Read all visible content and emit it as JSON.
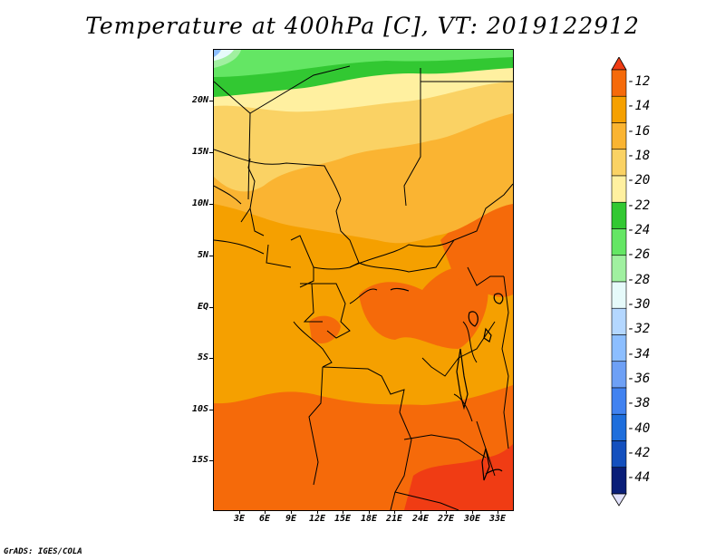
{
  "title": "Temperature at 400hPa [C], VT: 2019122912",
  "credit": "GrADS: IGES/COLA",
  "lat_labels": [
    "20N",
    "15N",
    "10N",
    "5N",
    "EQ",
    "5S",
    "10S",
    "15S"
  ],
  "lon_labels": [
    "3E",
    "6E",
    "9E",
    "12E",
    "15E",
    "18E",
    "21E",
    "24E",
    "27E",
    "30E",
    "33E"
  ],
  "colorbar": {
    "labels": [
      "-12",
      "-14",
      "-16",
      "-18",
      "-20",
      "-22",
      "-24",
      "-26",
      "-28",
      "-30",
      "-32",
      "-34",
      "-36",
      "-38",
      "-40",
      "-42",
      "-44"
    ],
    "colors": [
      "#f03c14",
      "#f56a0a",
      "#f5a000",
      "#fab432",
      "#fad264",
      "#fff0a0",
      "#32c832",
      "#64e664",
      "#a0f0a0",
      "#e6fafa",
      "#b4d7ff",
      "#8cbeff",
      "#6ea0f5",
      "#4182f0",
      "#1e6edc",
      "#1450be",
      "#0a1e78",
      "#e1e1fa"
    ]
  }
}
